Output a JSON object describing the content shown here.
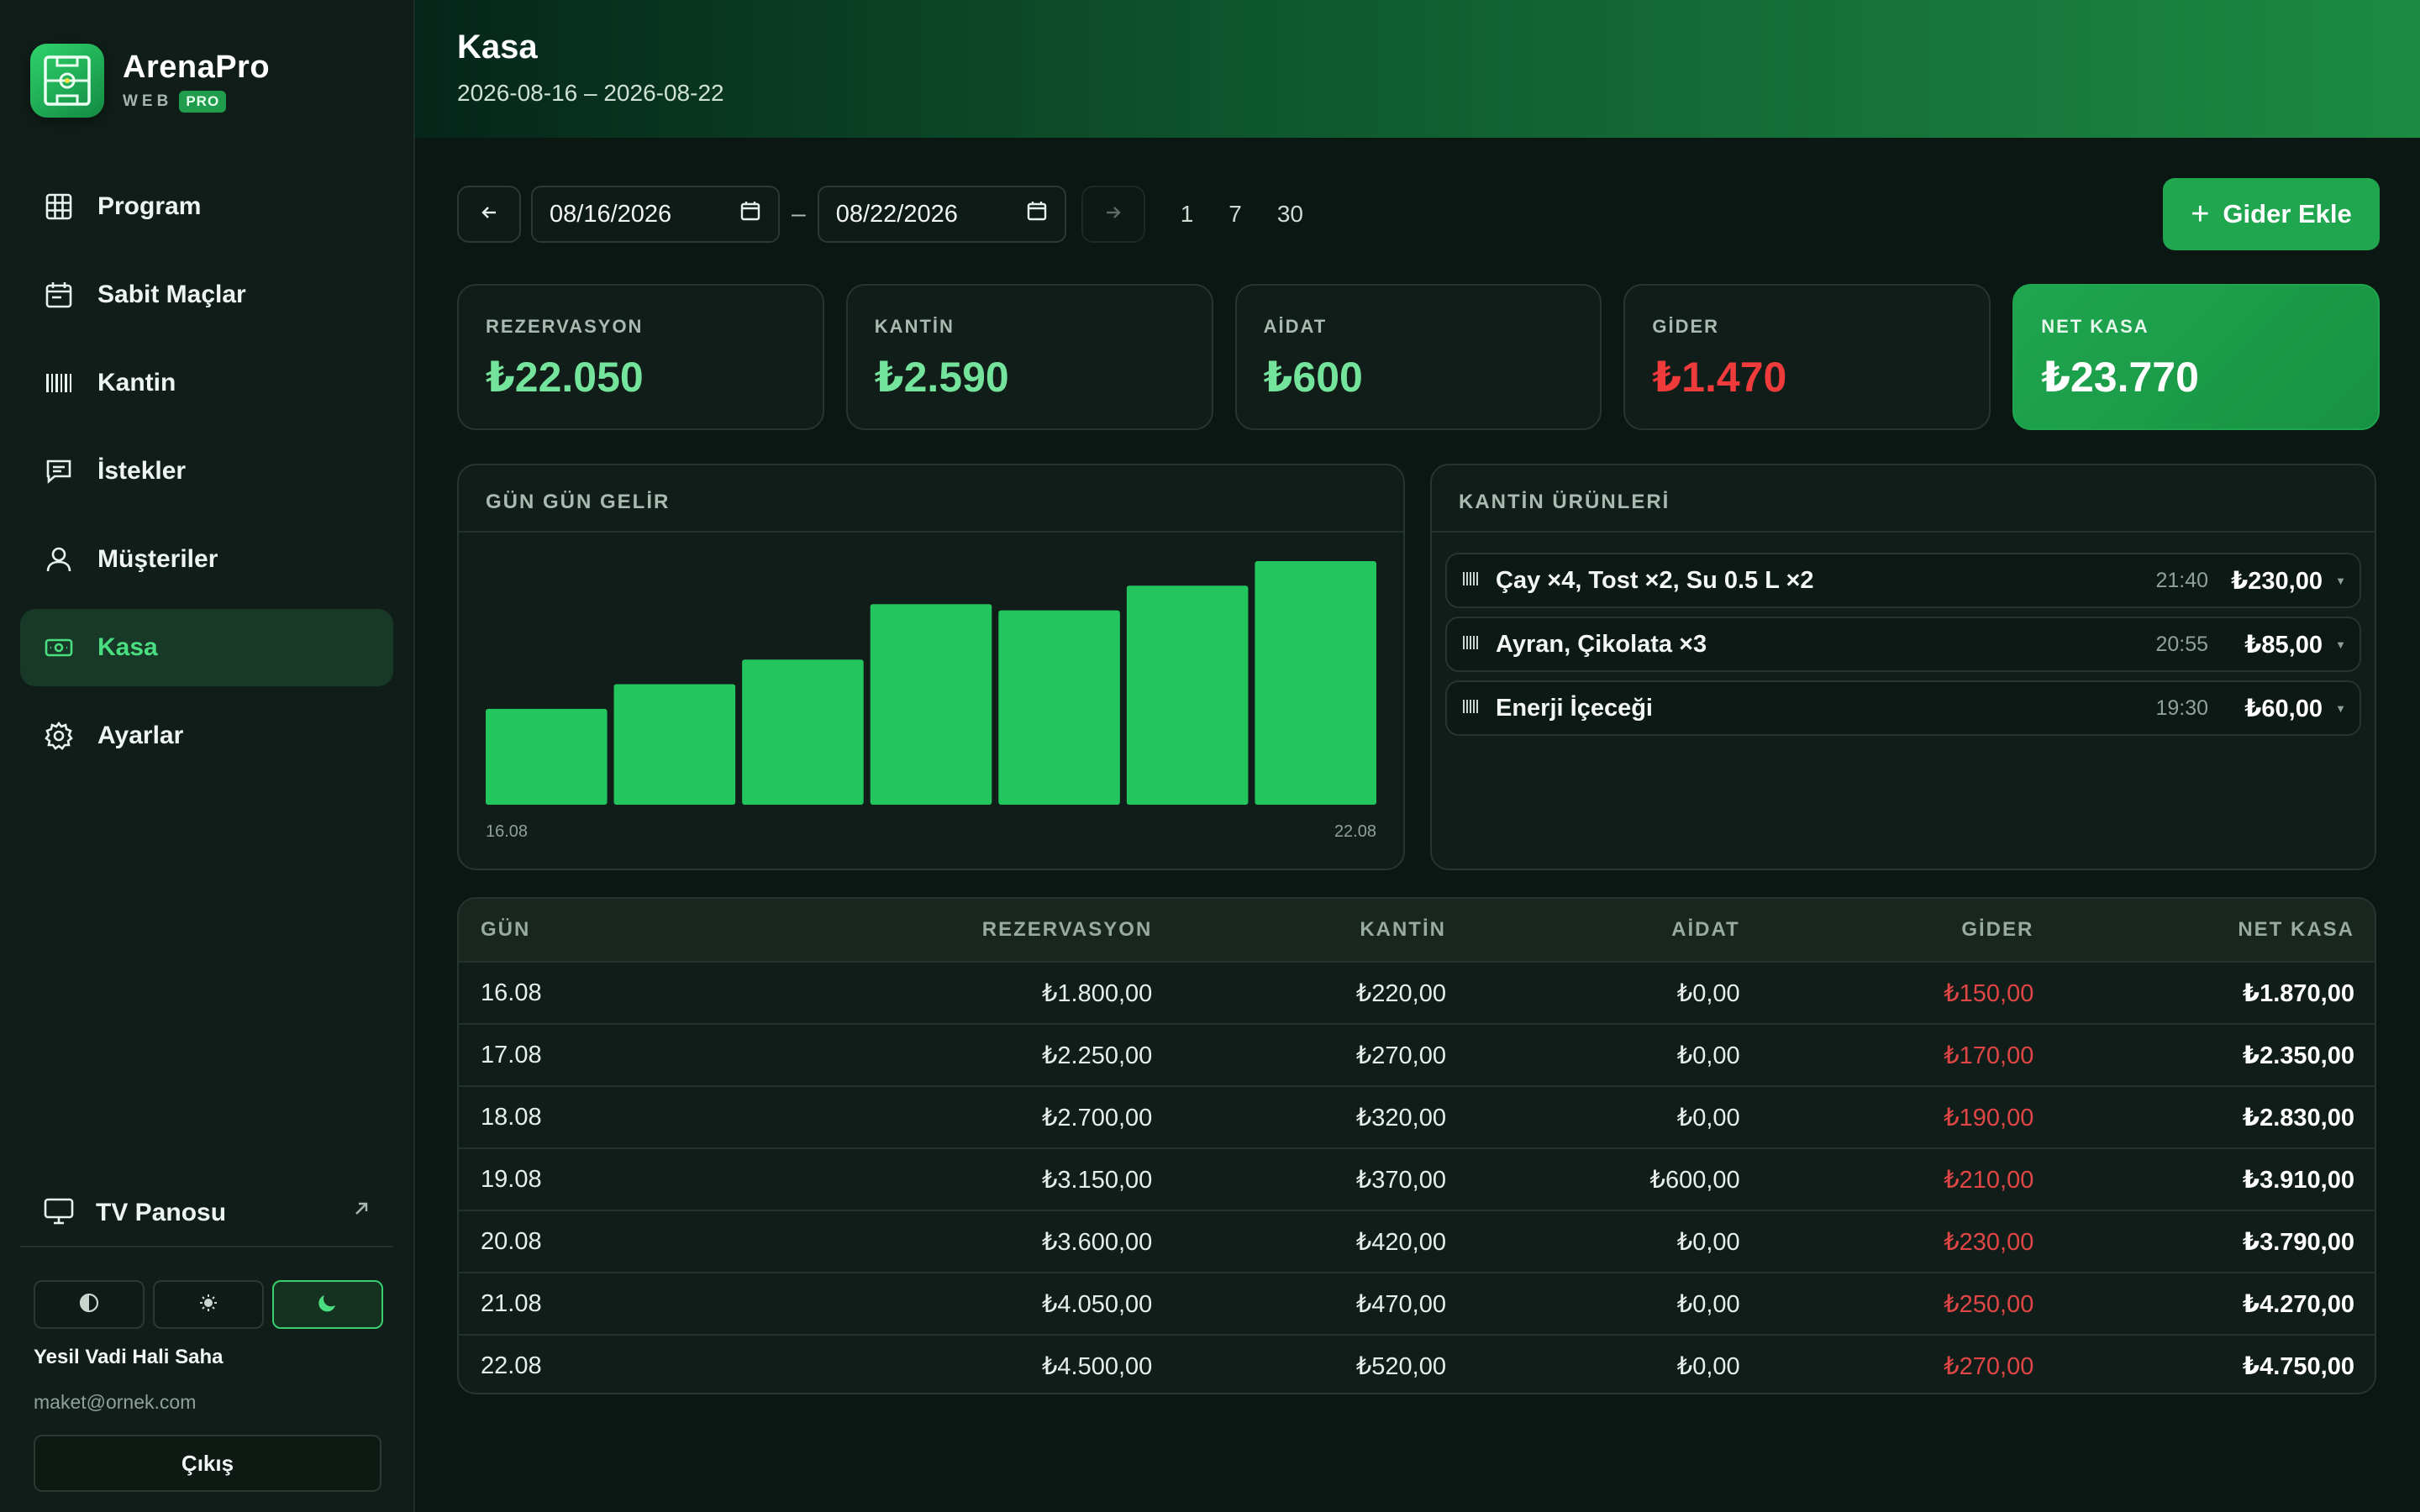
{
  "brand": {
    "name": "ArenaPro",
    "sub": "WEB",
    "badge": "PRO"
  },
  "nav": [
    {
      "label": "Program",
      "icon": "grid-icon"
    },
    {
      "label": "Sabit Maçlar",
      "icon": "calendar-icon"
    },
    {
      "label": "Kantin",
      "icon": "barcode-icon"
    },
    {
      "label": "İstekler",
      "icon": "message-icon"
    },
    {
      "label": "Müşteriler",
      "icon": "user-icon"
    },
    {
      "label": "Kasa",
      "icon": "cash-icon",
      "active": true
    },
    {
      "label": "Ayarlar",
      "icon": "gear-icon"
    }
  ],
  "sidebar": {
    "tv_label": "TV Panosu",
    "theme_options": [
      "auto",
      "light",
      "dark"
    ],
    "theme_selected": "dark",
    "user_name": "Yesil Vadi Hali Saha",
    "user_email": "maket@ornek.com",
    "logout_label": "Çıkış"
  },
  "header": {
    "title": "Kasa",
    "range": "2026-08-16 – 2026-08-22"
  },
  "toolbar": {
    "start_date": "08/16/2026",
    "end_date": "08/22/2026",
    "separator": "–",
    "presets": [
      "1",
      "7",
      "30"
    ],
    "add_label": "Gider Ekle"
  },
  "stats": [
    {
      "label": "REZERVASYON",
      "value": "₺22.050",
      "tone": "green"
    },
    {
      "label": "KANTİN",
      "value": "₺2.590",
      "tone": "green"
    },
    {
      "label": "AİDAT",
      "value": "₺600",
      "tone": "green"
    },
    {
      "label": "GİDER",
      "value": "₺1.470",
      "tone": "red"
    },
    {
      "label": "NET KASA",
      "value": "₺23.770",
      "tone": "net"
    }
  ],
  "chart_panel": {
    "title": "GÜN GÜN GELİR"
  },
  "chart_data": {
    "type": "bar",
    "categories": [
      "16.08",
      "17.08",
      "18.08",
      "19.08",
      "20.08",
      "21.08",
      "22.08"
    ],
    "values": [
      1870,
      2350,
      2830,
      3910,
      3790,
      4270,
      4750
    ],
    "x_tick_labels": [
      "16.08",
      "22.08"
    ],
    "color": "#22c55e"
  },
  "products": {
    "title": "KANTİN ÜRÜNLERİ",
    "items": [
      {
        "name": "Çay ×4, Tost ×2, Su 0.5 L ×2",
        "time": "21:40",
        "amount": "₺230,00"
      },
      {
        "name": "Ayran, Çikolata ×3",
        "time": "20:55",
        "amount": "₺85,00"
      },
      {
        "name": "Enerji İçeceği",
        "time": "19:30",
        "amount": "₺60,00"
      }
    ]
  },
  "table": {
    "headers": [
      "GÜN",
      "REZERVASYON",
      "KANTİN",
      "AİDAT",
      "GİDER",
      "NET KASA"
    ],
    "rows": [
      [
        "16.08",
        "₺1.800,00",
        "₺220,00",
        "₺0,00",
        "₺150,00",
        "₺1.870,00"
      ],
      [
        "17.08",
        "₺2.250,00",
        "₺270,00",
        "₺0,00",
        "₺170,00",
        "₺2.350,00"
      ],
      [
        "18.08",
        "₺2.700,00",
        "₺320,00",
        "₺0,00",
        "₺190,00",
        "₺2.830,00"
      ],
      [
        "19.08",
        "₺3.150,00",
        "₺370,00",
        "₺600,00",
        "₺210,00",
        "₺3.910,00"
      ],
      [
        "20.08",
        "₺3.600,00",
        "₺420,00",
        "₺0,00",
        "₺230,00",
        "₺3.790,00"
      ],
      [
        "21.08",
        "₺4.050,00",
        "₺470,00",
        "₺0,00",
        "₺250,00",
        "₺4.270,00"
      ],
      [
        "22.08",
        "₺4.500,00",
        "₺520,00",
        "₺0,00",
        "₺270,00",
        "₺4.750,00"
      ]
    ]
  },
  "colors": {
    "accent": "#22c55e",
    "expense": "#e04646",
    "background": "#0b1712"
  }
}
